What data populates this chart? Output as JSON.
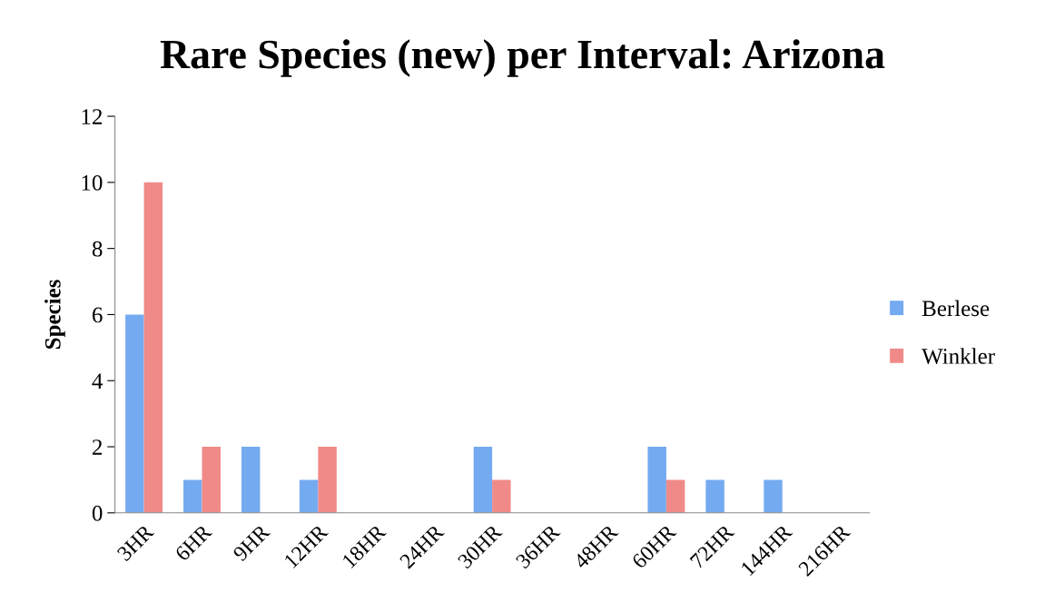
{
  "chart_data": {
    "type": "bar",
    "title": "Rare Species (new) per Interval: Arizona",
    "ylabel": "Species",
    "categories": [
      "3HR",
      "6HR",
      "9HR",
      "12HR",
      "18HR",
      "24HR",
      "30HR",
      "36HR",
      "48HR",
      "60HR",
      "72HR",
      "144HR",
      "216HR"
    ],
    "series": [
      {
        "name": "Berlese",
        "color": "#74aaf0",
        "values": [
          6,
          1,
          2,
          1,
          0,
          0,
          2,
          0,
          0,
          2,
          1,
          1,
          0
        ]
      },
      {
        "name": "Winkler",
        "color": "#f08a88",
        "values": [
          10,
          2,
          0,
          2,
          0,
          0,
          1,
          0,
          0,
          1,
          0,
          0,
          0
        ]
      }
    ],
    "ylim": [
      0,
      12
    ],
    "yticks": [
      0,
      2,
      4,
      6,
      8,
      10,
      12
    ],
    "grid": false,
    "legend": "right"
  }
}
